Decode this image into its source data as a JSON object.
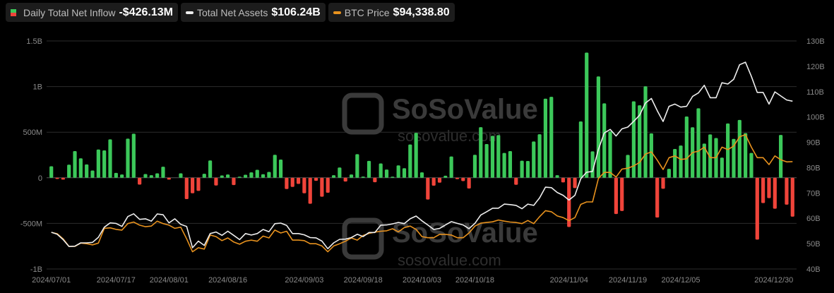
{
  "legend": [
    {
      "label": "Daily Total Net Inflow",
      "value": "-$426.13M",
      "up_color": "#3cc85a",
      "down_color": "#f0443a"
    },
    {
      "label": "Total Net Assets",
      "value": "$106.24B",
      "color": "#eeeeee"
    },
    {
      "label": "BTC Price",
      "value": "$94,338.80",
      "color": "#e8921e"
    }
  ],
  "watermark": {
    "brand": "SoSoValue",
    "site": "sosovalue.com"
  },
  "chart_data": {
    "type": "bar+line",
    "left_axis": {
      "ticks": [
        "1.5B",
        "1B",
        "500M",
        "0",
        "-500M",
        "-1B"
      ],
      "tick_values_m": [
        1500,
        1000,
        500,
        0,
        -500,
        -1000
      ],
      "range_m": [
        -1000,
        1500
      ]
    },
    "right_axis": {
      "ticks": [
        "130B",
        "120B",
        "110B",
        "100B",
        "90B",
        "80B",
        "70B",
        "60B",
        "50B",
        "40B"
      ],
      "tick_values_b": [
        130,
        120,
        110,
        100,
        90,
        80,
        70,
        60,
        50,
        40
      ],
      "range_b": [
        40,
        130
      ]
    },
    "x_ticks": [
      {
        "label": "2024/07/01",
        "index": 0
      },
      {
        "label": "2024/07/17",
        "index": 11
      },
      {
        "label": "2024/08/01",
        "index": 20
      },
      {
        "label": "2024/08/16",
        "index": 30
      },
      {
        "label": "2024/09/03",
        "index": 43
      },
      {
        "label": "2024/09/18",
        "index": 53
      },
      {
        "label": "2024/10/03",
        "index": 63
      },
      {
        "label": "2024/10/18",
        "index": 72
      },
      {
        "label": "2024/11/04",
        "index": 88
      },
      {
        "label": "2024/11/19",
        "index": 98
      },
      {
        "label": "2024/12/05",
        "index": 107
      },
      {
        "label": "2024/12/30",
        "index": 126
      }
    ],
    "series": [
      {
        "name": "Daily Total Net Inflow",
        "unit": "M USD",
        "type": "bar",
        "values": [
          126,
          -13,
          -20,
          144,
          293,
          213,
          146,
          80,
          310,
          300,
          421,
          54,
          36,
          429,
          483,
          -75,
          41,
          28,
          49,
          121,
          -20,
          0,
          49,
          -234,
          -170,
          -144,
          44,
          190,
          -85,
          26,
          36,
          -80,
          10,
          33,
          59,
          87,
          39,
          64,
          252,
          200,
          -123,
          -100,
          -67,
          -170,
          -285,
          -33,
          -208,
          -164,
          28,
          113,
          -41,
          36,
          259,
          13,
          185,
          -49,
          157,
          90,
          5,
          136,
          105,
          365,
          493,
          59,
          -239,
          -87,
          -54,
          23,
          234,
          -15,
          -36,
          -118,
          252,
          555,
          370,
          460,
          468,
          272,
          293,
          -77,
          187,
          184,
          398,
          477,
          867,
          888,
          28,
          -51,
          -539,
          -113,
          618,
          1372,
          290,
          1111,
          816,
          508,
          -397,
          -364,
          251,
          838,
          795,
          1003,
          487,
          -436,
          -121,
          98,
          316,
          354,
          672,
          554,
          762,
          375,
          475,
          436,
          221,
          595,
          426,
          634,
          490,
          272,
          -678,
          -277,
          -223,
          -339,
          470,
          -295,
          -426
        ]
      },
      {
        "name": "Total Net Assets",
        "unit": "B USD",
        "type": "line",
        "values": [
          54.5,
          53.7,
          51.6,
          48.9,
          49,
          50.3,
          50.3,
          50.5,
          52.5,
          56.5,
          58.2,
          58,
          56.8,
          60.7,
          61.8,
          59.6,
          59.8,
          58.9,
          61.7,
          61.4,
          58.2,
          59.8,
          57.6,
          56.8,
          48.4,
          51,
          49.3,
          54,
          54.6,
          53.3,
          54.9,
          53.3,
          51.6,
          54,
          53.4,
          54,
          55.6,
          54.7,
          57.9,
          58.1,
          57.2,
          54,
          54,
          53.5,
          52.4,
          52.3,
          51,
          48,
          50.3,
          51.7,
          51.8,
          52.4,
          53.7,
          52.8,
          54.4,
          54.4,
          57.3,
          57.4,
          57.8,
          58.4,
          57.9,
          59.8,
          60.9,
          59,
          57.4,
          55.6,
          56,
          57.4,
          58.7,
          58,
          57.4,
          55.9,
          58,
          61.3,
          62.6,
          64,
          64,
          65.6,
          65.4,
          65.1,
          63.8,
          65.6,
          65.1,
          68.1,
          72.3,
          72.1,
          70.2,
          69.1,
          67.2,
          69.1,
          75.6,
          78.2,
          78.5,
          87.2,
          93.7,
          95.1,
          92.5,
          95.3,
          96,
          98.3,
          100.7,
          105.5,
          107.3,
          102.5,
          98.2,
          104.2,
          105.1,
          103.9,
          104.2,
          108.1,
          109.5,
          112.5,
          107.6,
          107.6,
          113.5,
          113,
          114.9,
          120.6,
          121.6,
          116,
          109.7,
          109.7,
          105.1,
          109.9,
          108.3,
          106.7,
          106.24
        ]
      },
      {
        "name": "BTC Price",
        "unit": "thousand USD",
        "type": "line",
        "values": [
          62.7,
          62.1,
          59.8,
          56.4,
          56.4,
          57.9,
          57.6,
          57.1,
          57.9,
          64.5,
          64.7,
          64.0,
          63.7,
          66.6,
          67.3,
          65.9,
          65.2,
          65.5,
          67.7,
          66.6,
          65.9,
          64.5,
          65.0,
          59.8,
          54.0,
          55.8,
          55.2,
          61.5,
          60.8,
          59.0,
          60.2,
          58.4,
          57.4,
          58.7,
          59.2,
          58.7,
          61.0,
          60.2,
          63.7,
          62.4,
          63.2,
          59.2,
          59.2,
          59.0,
          57.6,
          57.6,
          56.6,
          54.0,
          56.6,
          57.6,
          58.7,
          60.2,
          59.2,
          61.3,
          62.2,
          62.8,
          63.2,
          63.4,
          64.3,
          62.9,
          64.8,
          65.5,
          64.0,
          60.8,
          60.3,
          60.3,
          61.8,
          61.8,
          61.5,
          60.3,
          60.3,
          62.4,
          65.5,
          66.8,
          67.1,
          67.4,
          68.2,
          67.7,
          67.3,
          67.1,
          66.6,
          68.0,
          66.6,
          69.7,
          72.4,
          71.9,
          70.0,
          69.3,
          67.9,
          69.3,
          75.2,
          76.3,
          76.3,
          86.8,
          89.5,
          89.5,
          87.4,
          91.0,
          91.4,
          92.4,
          94.0,
          97.7,
          98.7,
          95.0,
          90.8,
          96.1,
          96.9,
          95.3,
          95.6,
          98.4,
          99.0,
          100.8,
          96.1,
          96.1,
          100.8,
          99.7,
          101.3,
          105.4,
          106.4,
          100.8,
          96.1,
          96.1,
          93.0,
          96.9,
          95.2,
          94.2,
          94.34
        ]
      }
    ],
    "grid": true,
    "legend_position": "top-left"
  }
}
